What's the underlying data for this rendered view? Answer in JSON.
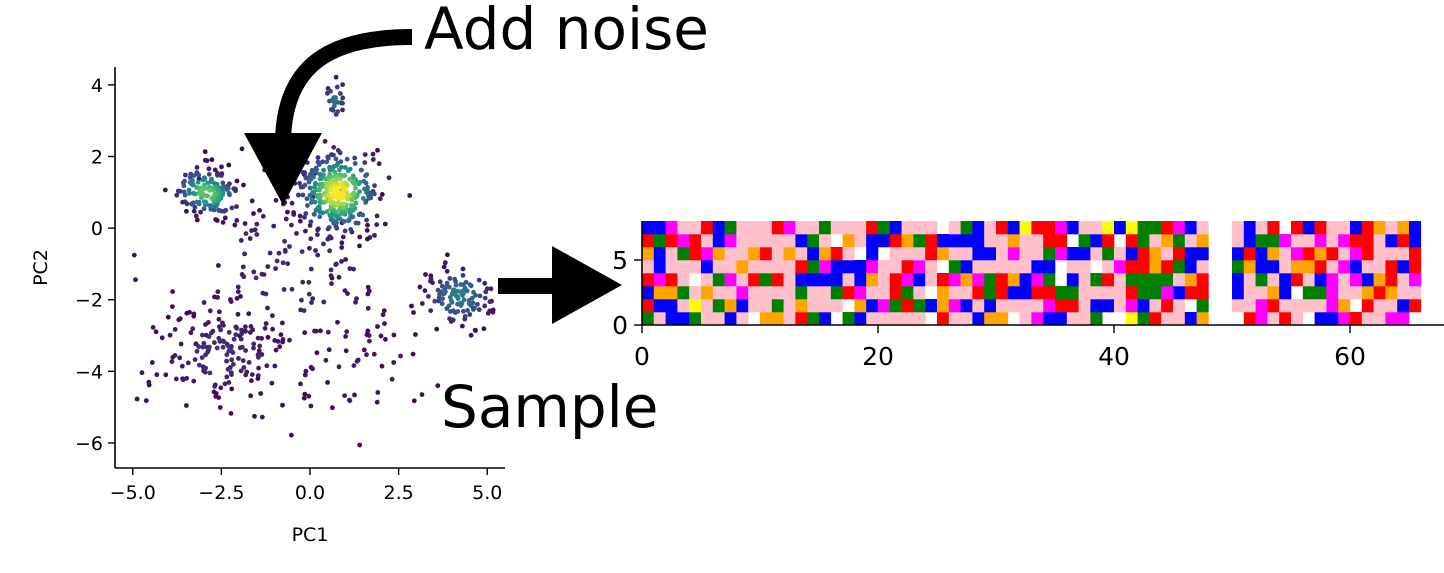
{
  "annotations": {
    "add_noise": "Add noise",
    "sample": "Sample"
  },
  "chart_data": [
    {
      "type": "scatter",
      "xlabel": "PC1",
      "ylabel": "PC2",
      "xlim": [
        -5.5,
        5.5
      ],
      "ylim": [
        -6.7,
        4.5
      ],
      "xticks": [
        "−5.0",
        "−2.5",
        "0.0",
        "2.5",
        "5.0"
      ],
      "yticks": [
        "4",
        "2",
        "0",
        "−2",
        "−4",
        "−6"
      ],
      "colormap": "viridis",
      "clusters": [
        {
          "cx": 0.8,
          "cy": 1.0,
          "sx": 0.55,
          "sy": 0.55,
          "rot": -35,
          "n": 320,
          "dens": 1.0
        },
        {
          "cx": -2.9,
          "cy": 1.0,
          "sx": 0.45,
          "sy": 0.3,
          "rot": -20,
          "n": 150,
          "dens": 0.75
        },
        {
          "cx": 0.7,
          "cy": 3.6,
          "sx": 0.15,
          "sy": 0.3,
          "rot": 0,
          "n": 25,
          "dens": 0.35
        },
        {
          "cx": 4.2,
          "cy": -1.9,
          "sx": 0.5,
          "sy": 0.4,
          "rot": 0,
          "n": 120,
          "dens": 0.4
        },
        {
          "cx": -2.6,
          "cy": -3.5,
          "sx": 1.0,
          "sy": 0.75,
          "rot": 10,
          "n": 150,
          "dens": 0.12
        },
        {
          "cx": -0.5,
          "cy": -1.0,
          "sx": 1.6,
          "sy": 1.5,
          "rot": 0,
          "n": 160,
          "dens": 0.1
        },
        {
          "cx": 1.5,
          "cy": -4.0,
          "sx": 1.5,
          "sy": 1.2,
          "rot": 0,
          "n": 45,
          "dens": 0.05
        }
      ]
    },
    {
      "type": "heatmap",
      "xlim": [
        0,
        68
      ],
      "ylim": [
        0,
        8
      ],
      "xticks": [
        "0",
        "20",
        "40",
        "60"
      ],
      "yticks": [
        "0",
        "5"
      ],
      "palette": [
        "#ffc0cb",
        "#ff0000",
        "#0000ff",
        "#008000",
        "#ffa500",
        "#ff00ff",
        "#ffff00"
      ],
      "column_segments": [
        [
          0,
          24
        ],
        [
          25,
          45
        ],
        [
          46,
          47
        ],
        [
          50,
          65
        ]
      ],
      "rows": 8
    }
  ]
}
